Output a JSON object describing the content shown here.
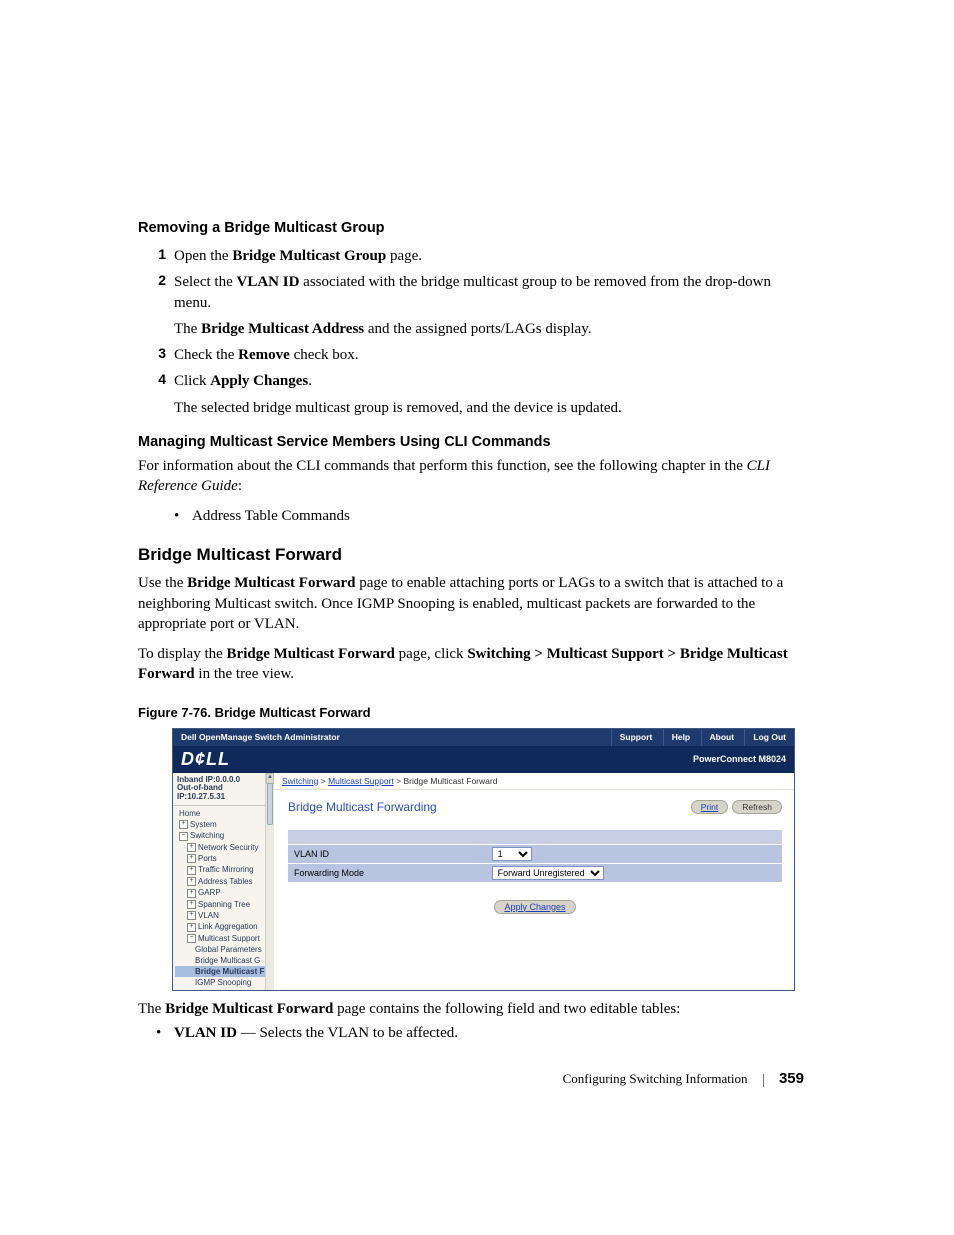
{
  "headings": {
    "removing": "Removing a Bridge Multicast Group",
    "managing": "Managing Multicast Service Members Using CLI Commands",
    "section": "Bridge Multicast Forward",
    "figure": "Figure 7-76.    Bridge Multicast Forward"
  },
  "steps": {
    "s1": {
      "num": "1",
      "pre": "Open the ",
      "bold": "Bridge Multicast Group",
      "post": " page."
    },
    "s2": {
      "num": "2",
      "pre": "Select the ",
      "bold": "VLAN ID",
      "post": " associated with the bridge multicast group to be removed from the drop-down menu.",
      "sub_pre": "The ",
      "sub_bold": "Bridge Multicast Address",
      "sub_post": " and the assigned ports/LAGs display."
    },
    "s3": {
      "num": "3",
      "pre": "Check the ",
      "bold": "Remove",
      "post": " check box."
    },
    "s4": {
      "num": "4",
      "pre": "Click ",
      "bold": "Apply Changes",
      "post": ".",
      "sub": "The selected bridge multicast group is removed, and the device is updated."
    }
  },
  "cli": {
    "p1": "For information about the CLI commands that perform this function, see the following chapter in the ",
    "guide": "CLI Reference Guide",
    "p1_post": ":",
    "bullet": "Address Table Commands"
  },
  "bmf": {
    "p1_pre": "Use the ",
    "p1_bold": "Bridge Multicast Forward",
    "p1_post": " page to enable attaching ports or LAGs to a switch that is attached to a neighboring Multicast switch. Once IGMP Snooping is enabled, multicast packets are forwarded to the appropriate port or VLAN.",
    "p2_pre": "To display the ",
    "p2_bold1": "Bridge Multicast Forward",
    "p2_mid": " page, click ",
    "p2_bold2": "Switching > Multicast Support > Bridge Multicast Forward",
    "p2_post": " in the tree view."
  },
  "postfig": {
    "p_pre": "The ",
    "p_bold": "Bridge Multicast Forward",
    "p_post": " page contains the following field and two editable tables:",
    "bullet_bold": "VLAN ID",
    "bullet_post": " — Selects the VLAN to be affected."
  },
  "footer": {
    "chapter": "Configuring Switching Information",
    "page": "359"
  },
  "screenshot": {
    "topbar": {
      "title": "Dell OpenManage Switch Administrator",
      "links": {
        "support": "Support",
        "help": "Help",
        "about": "About",
        "logout": "Log Out"
      }
    },
    "brand": {
      "logo": "D¢LL",
      "product": "PowerConnect M8024"
    },
    "side": {
      "ip1": "Inband IP:0.0.0.0",
      "ip2": "Out-of-band IP:10.27.5.31",
      "tree": [
        {
          "lvl": 1,
          "icon": "",
          "label": "Home"
        },
        {
          "lvl": 1,
          "icon": "+",
          "label": "System"
        },
        {
          "lvl": 1,
          "icon": "−",
          "label": "Switching"
        },
        {
          "lvl": 2,
          "icon": "+",
          "label": "Network Security"
        },
        {
          "lvl": 2,
          "icon": "+",
          "label": "Ports"
        },
        {
          "lvl": 2,
          "icon": "+",
          "label": "Traffic Mirroring"
        },
        {
          "lvl": 2,
          "icon": "+",
          "label": "Address Tables"
        },
        {
          "lvl": 2,
          "icon": "+",
          "label": "GARP"
        },
        {
          "lvl": 2,
          "icon": "+",
          "label": "Spanning Tree"
        },
        {
          "lvl": 2,
          "icon": "+",
          "label": "VLAN"
        },
        {
          "lvl": 2,
          "icon": "+",
          "label": "Link Aggregation"
        },
        {
          "lvl": 2,
          "icon": "−",
          "label": "Multicast Support"
        },
        {
          "lvl": 3,
          "icon": "",
          "label": "Global Parameters"
        },
        {
          "lvl": 3,
          "icon": "",
          "label": "Bridge Multicast G"
        },
        {
          "lvl": 3,
          "icon": "",
          "label": "Bridge Multicast F",
          "sel": true
        },
        {
          "lvl": 3,
          "icon": "",
          "label": "IGMP Snooping"
        }
      ]
    },
    "crumb": {
      "a1": "Switching",
      "a2": "Multicast Support",
      "tail": "Bridge Multicast Forward",
      "sep": " > "
    },
    "pane": {
      "title": "Bridge Multicast Forwarding",
      "print": "Print",
      "refresh": "Refresh",
      "row1": "VLAN ID",
      "row2": "Forwarding Mode",
      "vlan_value": "1",
      "mode_value": "Forward Unregistered",
      "apply": "Apply Changes"
    },
    "colors": {
      "topbar_bg": "#1f3a6d",
      "brand_bg": "#0f2a5a",
      "side_bg": "#f6f4ed",
      "row_bg": "#b9c4e1",
      "link": "#1a3fbf",
      "title": "#2a4fbf"
    }
  }
}
